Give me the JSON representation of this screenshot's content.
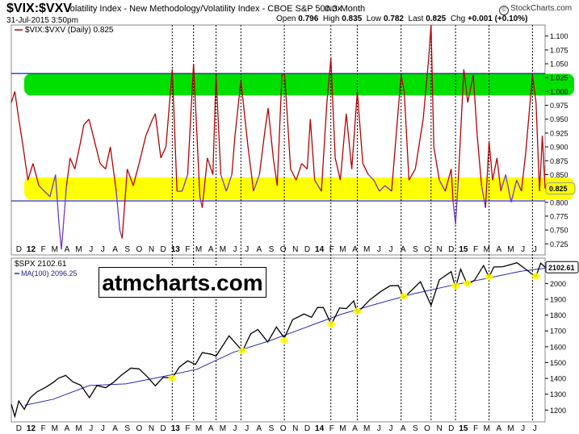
{
  "header": {
    "symbol": "$VIX:$VXV",
    "description": "Volatility Index - New Methodology/Volatility Index - CBOE S&P 500 3-Month",
    "exchange": "INDX",
    "date": "31-Jul-2015 3:50pm",
    "open_label": "Open",
    "open": "0.796",
    "high_label": "High",
    "high": "0.835",
    "low_label": "Low",
    "low": "0.782",
    "last_label": "Last",
    "last": "0.825",
    "chg_label": "Chg",
    "chg": "+0.001 (+0.10%)",
    "brand": "StockCharts.com",
    "brand_icon": "stockcharts-logo-icon"
  },
  "watermark": "atmcharts.com",
  "colors": {
    "ratio_line": "#b80000",
    "ratio_low": "#6a3cc8",
    "green_band": "#00e000",
    "yellow_band": "#ffff00",
    "blue_line": "#1c1cb0",
    "spx_line": "#000000",
    "ma_line": "#2a2ab0",
    "marker": "#ffff00",
    "value_box": "#ffff00"
  },
  "chart_data": [
    {
      "type": "line",
      "legend": "$VIX:$VXV (Daily) 0.825",
      "last_value": "0.825",
      "x_range": [
        "2011-11-16",
        "2015-07-31"
      ],
      "ylim": [
        0.705,
        1.12
      ],
      "y_ticks": [
        "1.100",
        "1.075",
        "1.050",
        "1.025",
        "1.000",
        "0.975",
        "0.950",
        "0.925",
        "0.900",
        "0.875",
        "0.850",
        "0.825",
        "0.800",
        "0.775",
        "0.750",
        "0.725"
      ],
      "y_tick_values": [
        1.1,
        1.075,
        1.05,
        1.025,
        1.0,
        0.975,
        0.95,
        0.925,
        0.9,
        0.875,
        0.85,
        0.825,
        0.8,
        0.775,
        0.75,
        0.725
      ],
      "hlines": [
        1.0325,
        0.8025
      ],
      "bands": [
        {
          "color": "green",
          "from": 0.993,
          "to": 1.032
        },
        {
          "color": "yellow",
          "from": 0.805,
          "to": 0.845
        }
      ],
      "points": [
        [
          "2011-11-16",
          0.98
        ],
        [
          "2011-11-25",
          1.0
        ],
        [
          "2011-12-05",
          0.95
        ],
        [
          "2011-12-16",
          0.9
        ],
        [
          "2011-12-28",
          0.84
        ],
        [
          "2012-01-10",
          0.87
        ],
        [
          "2012-01-25",
          0.83
        ],
        [
          "2012-02-08",
          0.82
        ],
        [
          "2012-02-22",
          0.81
        ],
        [
          "2012-03-07",
          0.85
        ],
        [
          "2012-03-16",
          0.76
        ],
        [
          "2012-03-22",
          0.715
        ],
        [
          "2012-04-04",
          0.83
        ],
        [
          "2012-04-13",
          0.88
        ],
        [
          "2012-04-25",
          0.86
        ],
        [
          "2012-05-07",
          0.9
        ],
        [
          "2012-05-18",
          0.94
        ],
        [
          "2012-05-31",
          0.95
        ],
        [
          "2012-06-14",
          0.91
        ],
        [
          "2012-06-28",
          0.87
        ],
        [
          "2012-07-12",
          0.86
        ],
        [
          "2012-07-24",
          0.9
        ],
        [
          "2012-08-08",
          0.82
        ],
        [
          "2012-08-17",
          0.75
        ],
        [
          "2012-08-23",
          0.735
        ],
        [
          "2012-09-05",
          0.86
        ],
        [
          "2012-09-20",
          0.83
        ],
        [
          "2012-10-05",
          0.87
        ],
        [
          "2012-10-22",
          0.92
        ],
        [
          "2012-11-08",
          0.95
        ],
        [
          "2012-11-15",
          0.96
        ],
        [
          "2012-11-29",
          0.88
        ],
        [
          "2012-12-12",
          0.9
        ],
        [
          "2012-12-28",
          1.04
        ],
        [
          "2013-01-09",
          0.82
        ],
        [
          "2013-01-22",
          0.82
        ],
        [
          "2013-02-05",
          0.85
        ],
        [
          "2013-02-20",
          1.05
        ],
        [
          "2013-02-26",
          0.96
        ],
        [
          "2013-03-08",
          0.81
        ],
        [
          "2013-03-14",
          0.79
        ],
        [
          "2013-03-27",
          0.88
        ],
        [
          "2013-04-10",
          0.85
        ],
        [
          "2013-04-18",
          1.03
        ],
        [
          "2013-04-30",
          0.85
        ],
        [
          "2013-05-14",
          0.82
        ],
        [
          "2013-05-28",
          0.85
        ],
        [
          "2013-06-05",
          0.92
        ],
        [
          "2013-06-20",
          1.02
        ],
        [
          "2013-07-08",
          0.9
        ],
        [
          "2013-07-22",
          0.82
        ],
        [
          "2013-08-06",
          0.85
        ],
        [
          "2013-08-20",
          0.93
        ],
        [
          "2013-08-28",
          0.97
        ],
        [
          "2013-09-10",
          0.88
        ],
        [
          "2013-09-20",
          0.83
        ],
        [
          "2013-10-02",
          1.03
        ],
        [
          "2013-10-09",
          1.03
        ],
        [
          "2013-10-24",
          0.86
        ],
        [
          "2013-11-07",
          0.84
        ],
        [
          "2013-11-21",
          0.87
        ],
        [
          "2013-12-05",
          0.86
        ],
        [
          "2013-12-13",
          0.95
        ],
        [
          "2013-12-24",
          0.84
        ],
        [
          "2014-01-10",
          0.82
        ],
        [
          "2014-01-24",
          0.98
        ],
        [
          "2014-02-03",
          1.06
        ],
        [
          "2014-02-14",
          0.88
        ],
        [
          "2014-02-27",
          0.84
        ],
        [
          "2014-03-14",
          0.96
        ],
        [
          "2014-03-28",
          0.86
        ],
        [
          "2014-04-11",
          1.0
        ],
        [
          "2014-04-25",
          0.87
        ],
        [
          "2014-05-09",
          0.85
        ],
        [
          "2014-05-23",
          0.84
        ],
        [
          "2014-06-06",
          0.82
        ],
        [
          "2014-06-20",
          0.83
        ],
        [
          "2014-07-07",
          0.82
        ],
        [
          "2014-07-31",
          1.03
        ],
        [
          "2014-08-08",
          1.0
        ],
        [
          "2014-08-20",
          0.84
        ],
        [
          "2014-09-05",
          0.86
        ],
        [
          "2014-09-25",
          0.95
        ],
        [
          "2014-10-09",
          1.06
        ],
        [
          "2014-10-15",
          1.12
        ],
        [
          "2014-10-22",
          0.9
        ],
        [
          "2014-11-05",
          0.84
        ],
        [
          "2014-11-20",
          0.82
        ],
        [
          "2014-12-05",
          0.86
        ],
        [
          "2014-12-10",
          0.8
        ],
        [
          "2014-12-16",
          0.76
        ],
        [
          "2014-12-23",
          0.84
        ],
        [
          "2015-01-06",
          1.04
        ],
        [
          "2015-01-16",
          0.98
        ],
        [
          "2015-01-30",
          1.03
        ],
        [
          "2015-02-09",
          0.92
        ],
        [
          "2015-02-20",
          0.83
        ],
        [
          "2015-03-02",
          0.79
        ],
        [
          "2015-03-11",
          0.91
        ],
        [
          "2015-03-20",
          0.84
        ],
        [
          "2015-03-31",
          0.88
        ],
        [
          "2015-04-10",
          0.82
        ],
        [
          "2015-04-22",
          0.85
        ],
        [
          "2015-05-06",
          0.8
        ],
        [
          "2015-05-20",
          0.84
        ],
        [
          "2015-06-01",
          0.82
        ],
        [
          "2015-06-12",
          0.89
        ],
        [
          "2015-06-29",
          1.03
        ],
        [
          "2015-07-08",
          0.98
        ],
        [
          "2015-07-17",
          0.82
        ],
        [
          "2015-07-24",
          0.92
        ],
        [
          "2015-07-31",
          0.825
        ]
      ]
    },
    {
      "type": "line",
      "legend_price": "$SPX 2102.61",
      "legend_ma": "MA(100) 2096.25",
      "last_value": "2102.61",
      "x_range": [
        "2011-11-16",
        "2015-07-31"
      ],
      "ylim": [
        1125,
        2160
      ],
      "y_ticks": [
        "2000",
        "1900",
        "1800",
        "1700",
        "1600",
        "1500",
        "1400",
        "1300",
        "1200"
      ],
      "y_tick_values": [
        2000,
        1900,
        1800,
        1700,
        1600,
        1500,
        1400,
        1300,
        1200
      ],
      "series": [
        {
          "name": "$SPX",
          "points": [
            [
              "2011-11-16",
              1236
            ],
            [
              "2011-11-25",
              1160
            ],
            [
              "2011-12-05",
              1257
            ],
            [
              "2011-12-19",
              1205
            ],
            [
              "2012-01-03",
              1277
            ],
            [
              "2012-01-20",
              1315
            ],
            [
              "2012-02-10",
              1342
            ],
            [
              "2012-03-01",
              1374
            ],
            [
              "2012-03-15",
              1402
            ],
            [
              "2012-04-02",
              1419
            ],
            [
              "2012-04-20",
              1378
            ],
            [
              "2012-05-10",
              1357
            ],
            [
              "2012-06-01",
              1278
            ],
            [
              "2012-06-20",
              1355
            ],
            [
              "2012-07-12",
              1341
            ],
            [
              "2012-08-01",
              1375
            ],
            [
              "2012-08-20",
              1418
            ],
            [
              "2012-09-14",
              1465
            ],
            [
              "2012-10-05",
              1460
            ],
            [
              "2012-10-25",
              1412
            ],
            [
              "2012-11-15",
              1353
            ],
            [
              "2012-12-05",
              1407
            ],
            [
              "2012-12-28",
              1402
            ],
            [
              "2013-01-15",
              1472
            ],
            [
              "2013-02-05",
              1511
            ],
            [
              "2013-02-25",
              1488
            ],
            [
              "2013-03-14",
              1563
            ],
            [
              "2013-04-05",
              1553
            ],
            [
              "2013-04-18",
              1541
            ],
            [
              "2013-05-21",
              1669
            ],
            [
              "2013-06-24",
              1573
            ],
            [
              "2013-07-15",
              1682
            ],
            [
              "2013-08-02",
              1709
            ],
            [
              "2013-08-27",
              1630
            ],
            [
              "2013-09-18",
              1725
            ],
            [
              "2013-10-08",
              1655
            ],
            [
              "2013-10-29",
              1771
            ],
            [
              "2013-11-27",
              1807
            ],
            [
              "2013-12-16",
              1786
            ],
            [
              "2013-12-31",
              1848
            ],
            [
              "2014-01-15",
              1848
            ],
            [
              "2014-02-04",
              1741
            ],
            [
              "2014-02-25",
              1845
            ],
            [
              "2014-03-14",
              1841
            ],
            [
              "2014-04-02",
              1890
            ],
            [
              "2014-04-11",
              1815
            ],
            [
              "2014-05-13",
              1897
            ],
            [
              "2014-06-10",
              1950
            ],
            [
              "2014-07-03",
              1985
            ],
            [
              "2014-07-24",
              1987
            ],
            [
              "2014-08-07",
              1909
            ],
            [
              "2014-09-18",
              2011
            ],
            [
              "2014-10-15",
              1862
            ],
            [
              "2014-11-05",
              2023
            ],
            [
              "2014-12-05",
              2075
            ],
            [
              "2014-12-16",
              1972
            ],
            [
              "2014-12-29",
              2090
            ],
            [
              "2015-01-15",
              1992
            ],
            [
              "2015-02-02",
              2020
            ],
            [
              "2015-02-25",
              2113
            ],
            [
              "2015-03-11",
              2040
            ],
            [
              "2015-03-23",
              2104
            ],
            [
              "2015-04-15",
              2106
            ],
            [
              "2015-05-21",
              2131
            ],
            [
              "2015-06-15",
              2084
            ],
            [
              "2015-06-29",
              2057
            ],
            [
              "2015-07-08",
              2046
            ],
            [
              "2015-07-20",
              2128
            ],
            [
              "2015-07-31",
              2102.61
            ]
          ]
        },
        {
          "name": "MA(100)",
          "points": [
            [
              "2011-12-20",
              1230
            ],
            [
              "2012-03-01",
              1268
            ],
            [
              "2012-06-01",
              1355
            ],
            [
              "2012-09-01",
              1365
            ],
            [
              "2012-12-01",
              1410
            ],
            [
              "2013-03-01",
              1458
            ],
            [
              "2013-06-01",
              1565
            ],
            [
              "2013-09-01",
              1638
            ],
            [
              "2013-12-01",
              1722
            ],
            [
              "2014-03-01",
              1805
            ],
            [
              "2014-06-01",
              1872
            ],
            [
              "2014-09-01",
              1935
            ],
            [
              "2014-12-01",
              1985
            ],
            [
              "2015-03-01",
              2030
            ],
            [
              "2015-06-01",
              2078
            ],
            [
              "2015-07-31",
              2096.25
            ]
          ]
        }
      ],
      "markers": [
        [
          "2012-12-28",
          1402
        ],
        [
          "2013-06-24",
          1573
        ],
        [
          "2013-10-08",
          1640
        ],
        [
          "2014-02-04",
          1741
        ],
        [
          "2014-04-11",
          1825
        ],
        [
          "2014-08-07",
          1920
        ],
        [
          "2014-12-16",
          1985
        ],
        [
          "2015-01-15",
          2000
        ],
        [
          "2015-03-11",
          2040
        ],
        [
          "2015-07-08",
          2046
        ]
      ]
    }
  ],
  "time_axis": {
    "month_labels": [
      "D",
      "12",
      "F",
      "M",
      "A",
      "M",
      "J",
      "J",
      "A",
      "S",
      "O",
      "N",
      "D",
      "13",
      "F",
      "M",
      "A",
      "M",
      "J",
      "J",
      "A",
      "S",
      "O",
      "N",
      "D",
      "14",
      "F",
      "M",
      "A",
      "M",
      "J",
      "J",
      "A",
      "S",
      "O",
      "N",
      "D",
      "15",
      "F",
      "M",
      "A",
      "M",
      "J",
      "J"
    ],
    "month_dates": [
      "2011-12-01",
      "2012-01-01",
      "2012-02-01",
      "2012-03-01",
      "2012-04-01",
      "2012-05-01",
      "2012-06-01",
      "2012-07-01",
      "2012-08-01",
      "2012-09-01",
      "2012-10-01",
      "2012-11-01",
      "2012-12-01",
      "2013-01-01",
      "2013-02-01",
      "2013-03-01",
      "2013-04-01",
      "2013-05-01",
      "2013-06-01",
      "2013-07-01",
      "2013-08-01",
      "2013-09-01",
      "2013-10-01",
      "2013-11-01",
      "2013-12-01",
      "2014-01-01",
      "2014-02-01",
      "2014-03-01",
      "2014-04-01",
      "2014-05-01",
      "2014-06-01",
      "2014-07-01",
      "2014-08-01",
      "2014-09-01",
      "2014-10-01",
      "2014-11-01",
      "2014-12-01",
      "2015-01-01",
      "2015-02-01",
      "2015-03-01",
      "2015-04-01",
      "2015-05-01",
      "2015-06-01",
      "2015-07-01"
    ],
    "year_labels": [
      "12",
      "13",
      "14",
      "15"
    ],
    "dotted_lines": [
      "2012-12-28",
      "2013-02-20",
      "2013-04-18",
      "2013-06-20",
      "2013-10-08",
      "2014-02-03",
      "2014-04-11",
      "2014-07-31",
      "2014-10-15",
      "2014-12-16",
      "2015-03-11",
      "2015-06-29"
    ]
  }
}
